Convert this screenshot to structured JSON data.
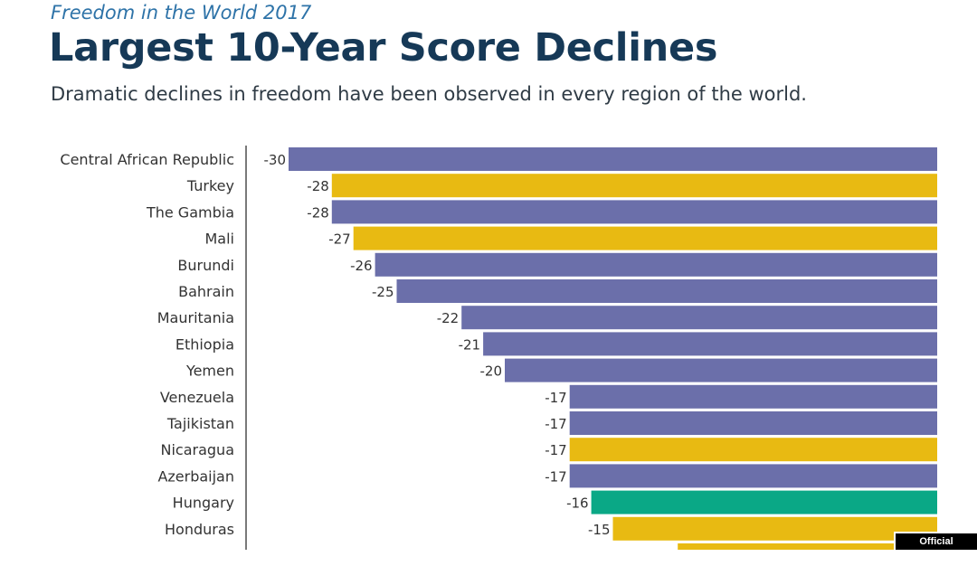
{
  "header": {
    "supertitle": "Freedom in the World 2017",
    "title": "Largest 10-Year Score Declines",
    "subtitle": "Dramatic declines in freedom have been observed in every region of the world."
  },
  "badge": "Official publication",
  "colors": {
    "purple": "#6b6faa",
    "gold": "#e8ba12",
    "green": "#0aa886",
    "axis": "#333333",
    "label": "#333333"
  },
  "chart_data": {
    "type": "bar",
    "orientation": "horizontal",
    "title": "Largest 10-Year Score Declines",
    "xlabel": "",
    "ylabel": "",
    "xlim": [
      -30,
      0
    ],
    "categories": [
      "Central African Republic",
      "Turkey",
      "The Gambia",
      "Mali",
      "Burundi",
      "Bahrain",
      "Mauritania",
      "Ethiopia",
      "Yemen",
      "Venezuela",
      "Tajikistan",
      "Nicaragua",
      "Azerbaijan",
      "Hungary",
      "Honduras",
      ""
    ],
    "values": [
      -30,
      -28,
      -28,
      -27,
      -26,
      -25,
      -22,
      -21,
      -20,
      -17,
      -17,
      -17,
      -17,
      -16,
      -15,
      -12
    ],
    "bar_colors": [
      "purple",
      "gold",
      "purple",
      "gold",
      "purple",
      "purple",
      "purple",
      "purple",
      "purple",
      "purple",
      "purple",
      "gold",
      "purple",
      "green",
      "gold",
      "gold"
    ],
    "labels": [
      "-30",
      "-28",
      "-28",
      "-27",
      "-26",
      "-25",
      "-22",
      "-21",
      "-20",
      "-17",
      "-17",
      "-17",
      "-17",
      "-16",
      "-15",
      ""
    ]
  }
}
